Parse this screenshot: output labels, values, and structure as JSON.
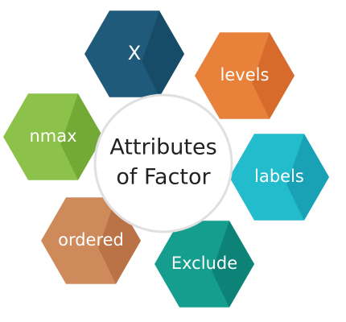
{
  "center": {
    "line1": "Attributes",
    "line2": "of Factor"
  },
  "hexagons": [
    {
      "id": "x",
      "label": "X",
      "color": "#1f5a7a",
      "shade": "#164a66"
    },
    {
      "id": "levels",
      "label": "levels",
      "color": "#e8813a",
      "shade": "#d2672a"
    },
    {
      "id": "labels",
      "label": "labels",
      "color": "#22bccc",
      "shade": "#179eb0"
    },
    {
      "id": "exclude",
      "label": "Exclude",
      "color": "#159d8e",
      "shade": "#0c7e73"
    },
    {
      "id": "ordered",
      "label": "ordered",
      "color": "#cf8a5c",
      "shade": "#b66e42"
    },
    {
      "id": "nmax",
      "label": "nmax",
      "color": "#8cc24a",
      "shade": "#6fa632"
    }
  ]
}
